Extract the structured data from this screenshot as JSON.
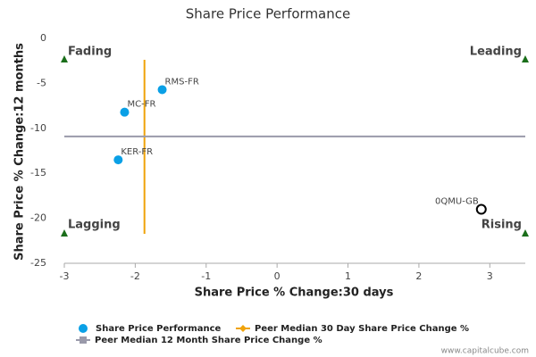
{
  "chart_data": {
    "type": "scatter",
    "title": "Share Price Performance",
    "x_label": "Share Price % Change:30 days",
    "y_label": "Share Price % Change:12 months",
    "xlim": [
      -3,
      3.5
    ],
    "ylim": [
      -25,
      0
    ],
    "xticks": [
      -3,
      -2,
      -1,
      0,
      1,
      2,
      3
    ],
    "yticks": [
      0,
      -5,
      -10,
      -15,
      -20,
      -25
    ],
    "series": [
      {
        "name": "Share Price Performance",
        "color": "#0aa0e6",
        "point_labels": [
          "RMS-FR",
          "MC-FR",
          "KER-FR",
          "0QMU-GB"
        ],
        "x": [
          -1.62,
          -2.15,
          -2.24,
          2.88
        ],
        "values": [
          -5.7,
          -8.2,
          -13.5,
          -19.0
        ],
        "point_styles": [
          "filled",
          "filled",
          "filled",
          "hollow"
        ]
      }
    ],
    "reference_lines": [
      {
        "name": "Peer Median 30 Day Share Price Change %",
        "color": "#f0a30a",
        "axis": "x",
        "value": -1.87
      },
      {
        "name": "Peer Median 12 Month Share Price Change %",
        "color": "#9a9aaa",
        "axis": "y",
        "value": -10.9
      }
    ],
    "quadrants": [
      {
        "label": "Fading",
        "corner": "top-left"
      },
      {
        "label": "Leading",
        "corner": "top-right"
      },
      {
        "label": "Lagging",
        "corner": "bottom-left"
      },
      {
        "label": "Rising",
        "corner": "bottom-right"
      }
    ],
    "quadrant_color": "#1a6e1a",
    "footer": "www.capitalcube.com"
  }
}
